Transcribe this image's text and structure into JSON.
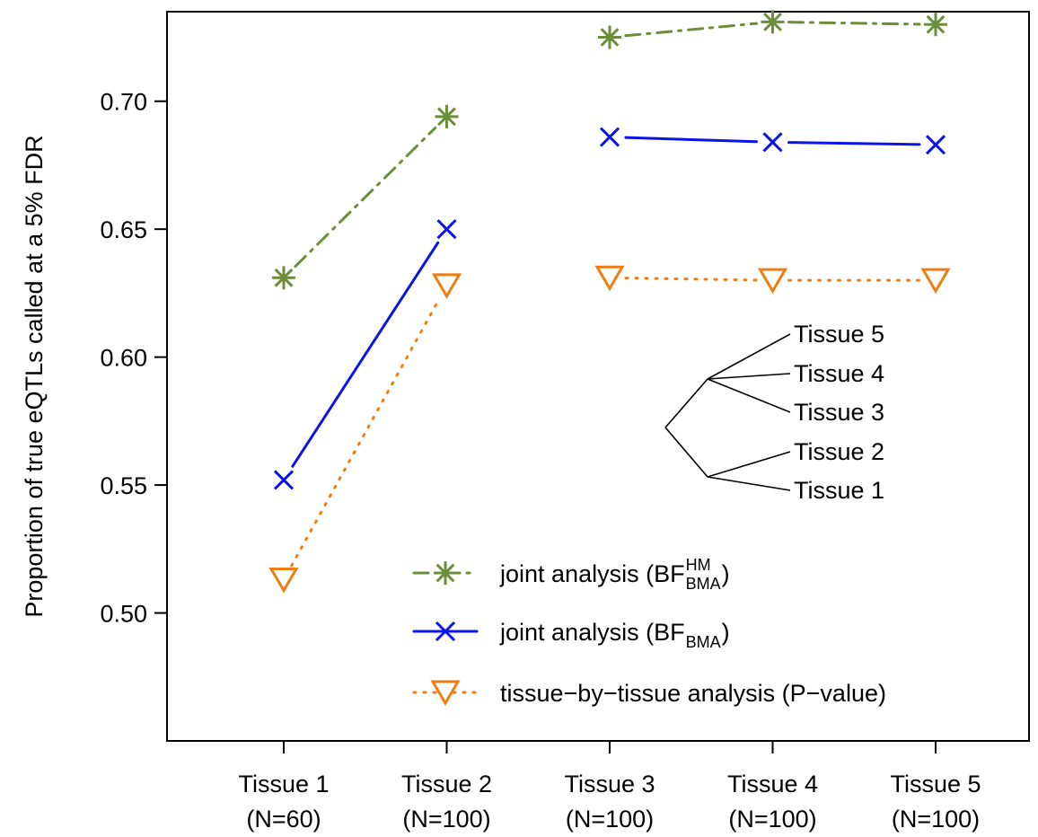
{
  "chart_data": {
    "type": "line",
    "title": "",
    "ylabel": "Proportion of true eQTLs called at a 5% FDR",
    "xlabel": "",
    "ylim": [
      0.45,
      0.735
    ],
    "yticks": [
      "0.50",
      "0.55",
      "0.60",
      "0.65",
      "0.70"
    ],
    "categories": [
      {
        "name": "Tissue 1",
        "n": "(N=60)"
      },
      {
        "name": "Tissue 2",
        "n": "(N=100)"
      },
      {
        "name": "Tissue 3",
        "n": "(N=100)"
      },
      {
        "name": "Tissue 4",
        "n": "(N=100)"
      },
      {
        "name": "Tissue 5",
        "n": "(N=100)"
      }
    ],
    "series": [
      {
        "key": "bf_hm",
        "legend_main": "joint analysis (BF",
        "legend_sup": "HM",
        "legend_sub": "BMA",
        "legend_tail": ")",
        "color": "#6B8E3A",
        "marker": "asterisk",
        "dash": "16,8,3,8",
        "values": [
          0.631,
          0.694,
          0.725,
          0.731,
          0.73
        ]
      },
      {
        "key": "bf",
        "legend_main": "joint analysis (BF",
        "legend_sup": "",
        "legend_sub": "BMA",
        "legend_tail": ")",
        "color": "#0A14E6",
        "marker": "cross",
        "dash": "",
        "values": [
          0.552,
          0.65,
          0.686,
          0.684,
          0.683
        ]
      },
      {
        "key": "pval",
        "legend_main": "tissue−by−tissue analysis (P−value)",
        "legend_sup": "",
        "legend_sub": "",
        "legend_tail": "",
        "color": "#F07D12",
        "marker": "triangle-down",
        "dash": "2,9",
        "values": [
          0.513,
          0.628,
          0.631,
          0.63,
          0.63
        ]
      }
    ],
    "connected_groups": [
      [
        0,
        1
      ],
      [
        2,
        3,
        4
      ]
    ],
    "dendrogram": {
      "labels": [
        "Tissue 5",
        "Tissue 4",
        "Tissue 3",
        "Tissue 2",
        "Tissue 1"
      ]
    },
    "legend_position": "bottom-right",
    "grid": false
  }
}
